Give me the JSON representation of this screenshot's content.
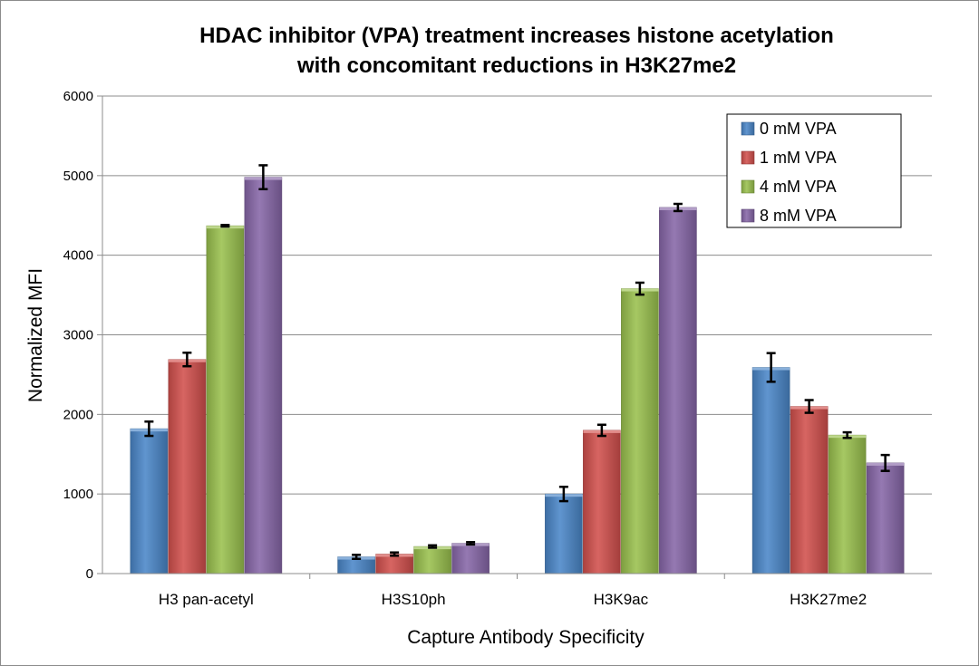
{
  "chart_data": {
    "type": "bar",
    "title": "HDAC inhibitor (VPA) treatment increases histone acetylation",
    "subtitle": "with concomitant reductions in H3K27me2",
    "xlabel": "Capture Antibody Specificity",
    "ylabel": "Normalized MFI",
    "ylim": [
      0,
      6000
    ],
    "yticks": [
      0,
      1000,
      2000,
      3000,
      4000,
      5000,
      6000
    ],
    "grid": true,
    "legend_position": "top-right",
    "categories": [
      "H3 pan-acetyl",
      "H3S10ph",
      "H3K9ac",
      "H3K27me2"
    ],
    "series": [
      {
        "name": "0 mM VPA",
        "color": "#4a86c8",
        "values": [
          1820,
          210,
          1000,
          2590
        ],
        "errors": [
          90,
          25,
          90,
          180
        ]
      },
      {
        "name": "1 mM VPA",
        "color": "#d2504d",
        "values": [
          2690,
          245,
          1800,
          2100
        ],
        "errors": [
          85,
          20,
          70,
          80
        ]
      },
      {
        "name": "4 mM VPA",
        "color": "#9ac14e",
        "values": [
          4370,
          340,
          3580,
          1740
        ],
        "errors": [
          10,
          15,
          75,
          35
        ]
      },
      {
        "name": "8 mM VPA",
        "color": "#8767a8",
        "values": [
          4980,
          380,
          4600,
          1390
        ],
        "errors": [
          150,
          15,
          45,
          100
        ]
      }
    ]
  }
}
